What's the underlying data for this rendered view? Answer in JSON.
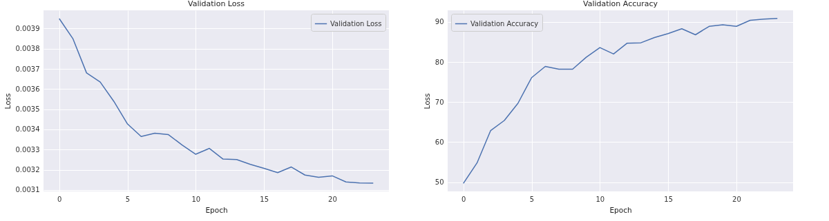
{
  "chart_data": [
    {
      "type": "line",
      "title": "Validation Loss",
      "xlabel": "Epoch",
      "ylabel": "Loss",
      "x": [
        0,
        1,
        2,
        3,
        4,
        5,
        6,
        7,
        8,
        9,
        10,
        11,
        12,
        13,
        14,
        15,
        16,
        17,
        18,
        19,
        20,
        21,
        22,
        23
      ],
      "series": [
        {
          "name": "Validation Loss",
          "color": "#4c72b0",
          "values": [
            0.003949,
            0.00385,
            0.00368,
            0.003635,
            0.003539,
            0.003427,
            0.003365,
            0.003381,
            0.003374,
            0.003323,
            0.003277,
            0.003306,
            0.003253,
            0.003251,
            0.003227,
            0.003207,
            0.003186,
            0.003214,
            0.003174,
            0.003163,
            0.00317,
            0.00314,
            0.003135,
            0.003134
          ]
        }
      ],
      "xlim": [
        -1.15,
        24.15
      ],
      "xticks": [
        0,
        5,
        10,
        15,
        20
      ],
      "ylim": [
        0.003093,
        0.00399
      ],
      "yticks": [
        0.0031,
        0.0032,
        0.0033,
        0.0034,
        0.0035,
        0.0036,
        0.0037,
        0.0038,
        0.0039
      ],
      "grid": true,
      "legend": "top right"
    },
    {
      "type": "line",
      "title": "Validation Accuracy",
      "xlabel": "Epoch",
      "ylabel": "Loss",
      "x": [
        0,
        1,
        2,
        3,
        4,
        5,
        6,
        7,
        8,
        9,
        10,
        11,
        12,
        13,
        14,
        15,
        16,
        17,
        18,
        19,
        20,
        21,
        22,
        23
      ],
      "series": [
        {
          "name": "Validation Accuracy",
          "color": "#4c72b0",
          "values": [
            49.7,
            54.8,
            62.9,
            65.4,
            69.7,
            76.1,
            78.9,
            78.2,
            78.2,
            81.2,
            83.6,
            82.0,
            84.7,
            84.8,
            86.1,
            87.1,
            88.3,
            86.8,
            88.9,
            89.3,
            88.9,
            90.4,
            90.7,
            90.9
          ]
        }
      ],
      "xlim": [
        -1.15,
        24.15
      ],
      "xticks": [
        0,
        5,
        10,
        15,
        20
      ],
      "ylim": [
        47.7,
        92.9
      ],
      "yticks": [
        50,
        60,
        70,
        80,
        90
      ],
      "grid": true,
      "legend": "top left"
    }
  ]
}
